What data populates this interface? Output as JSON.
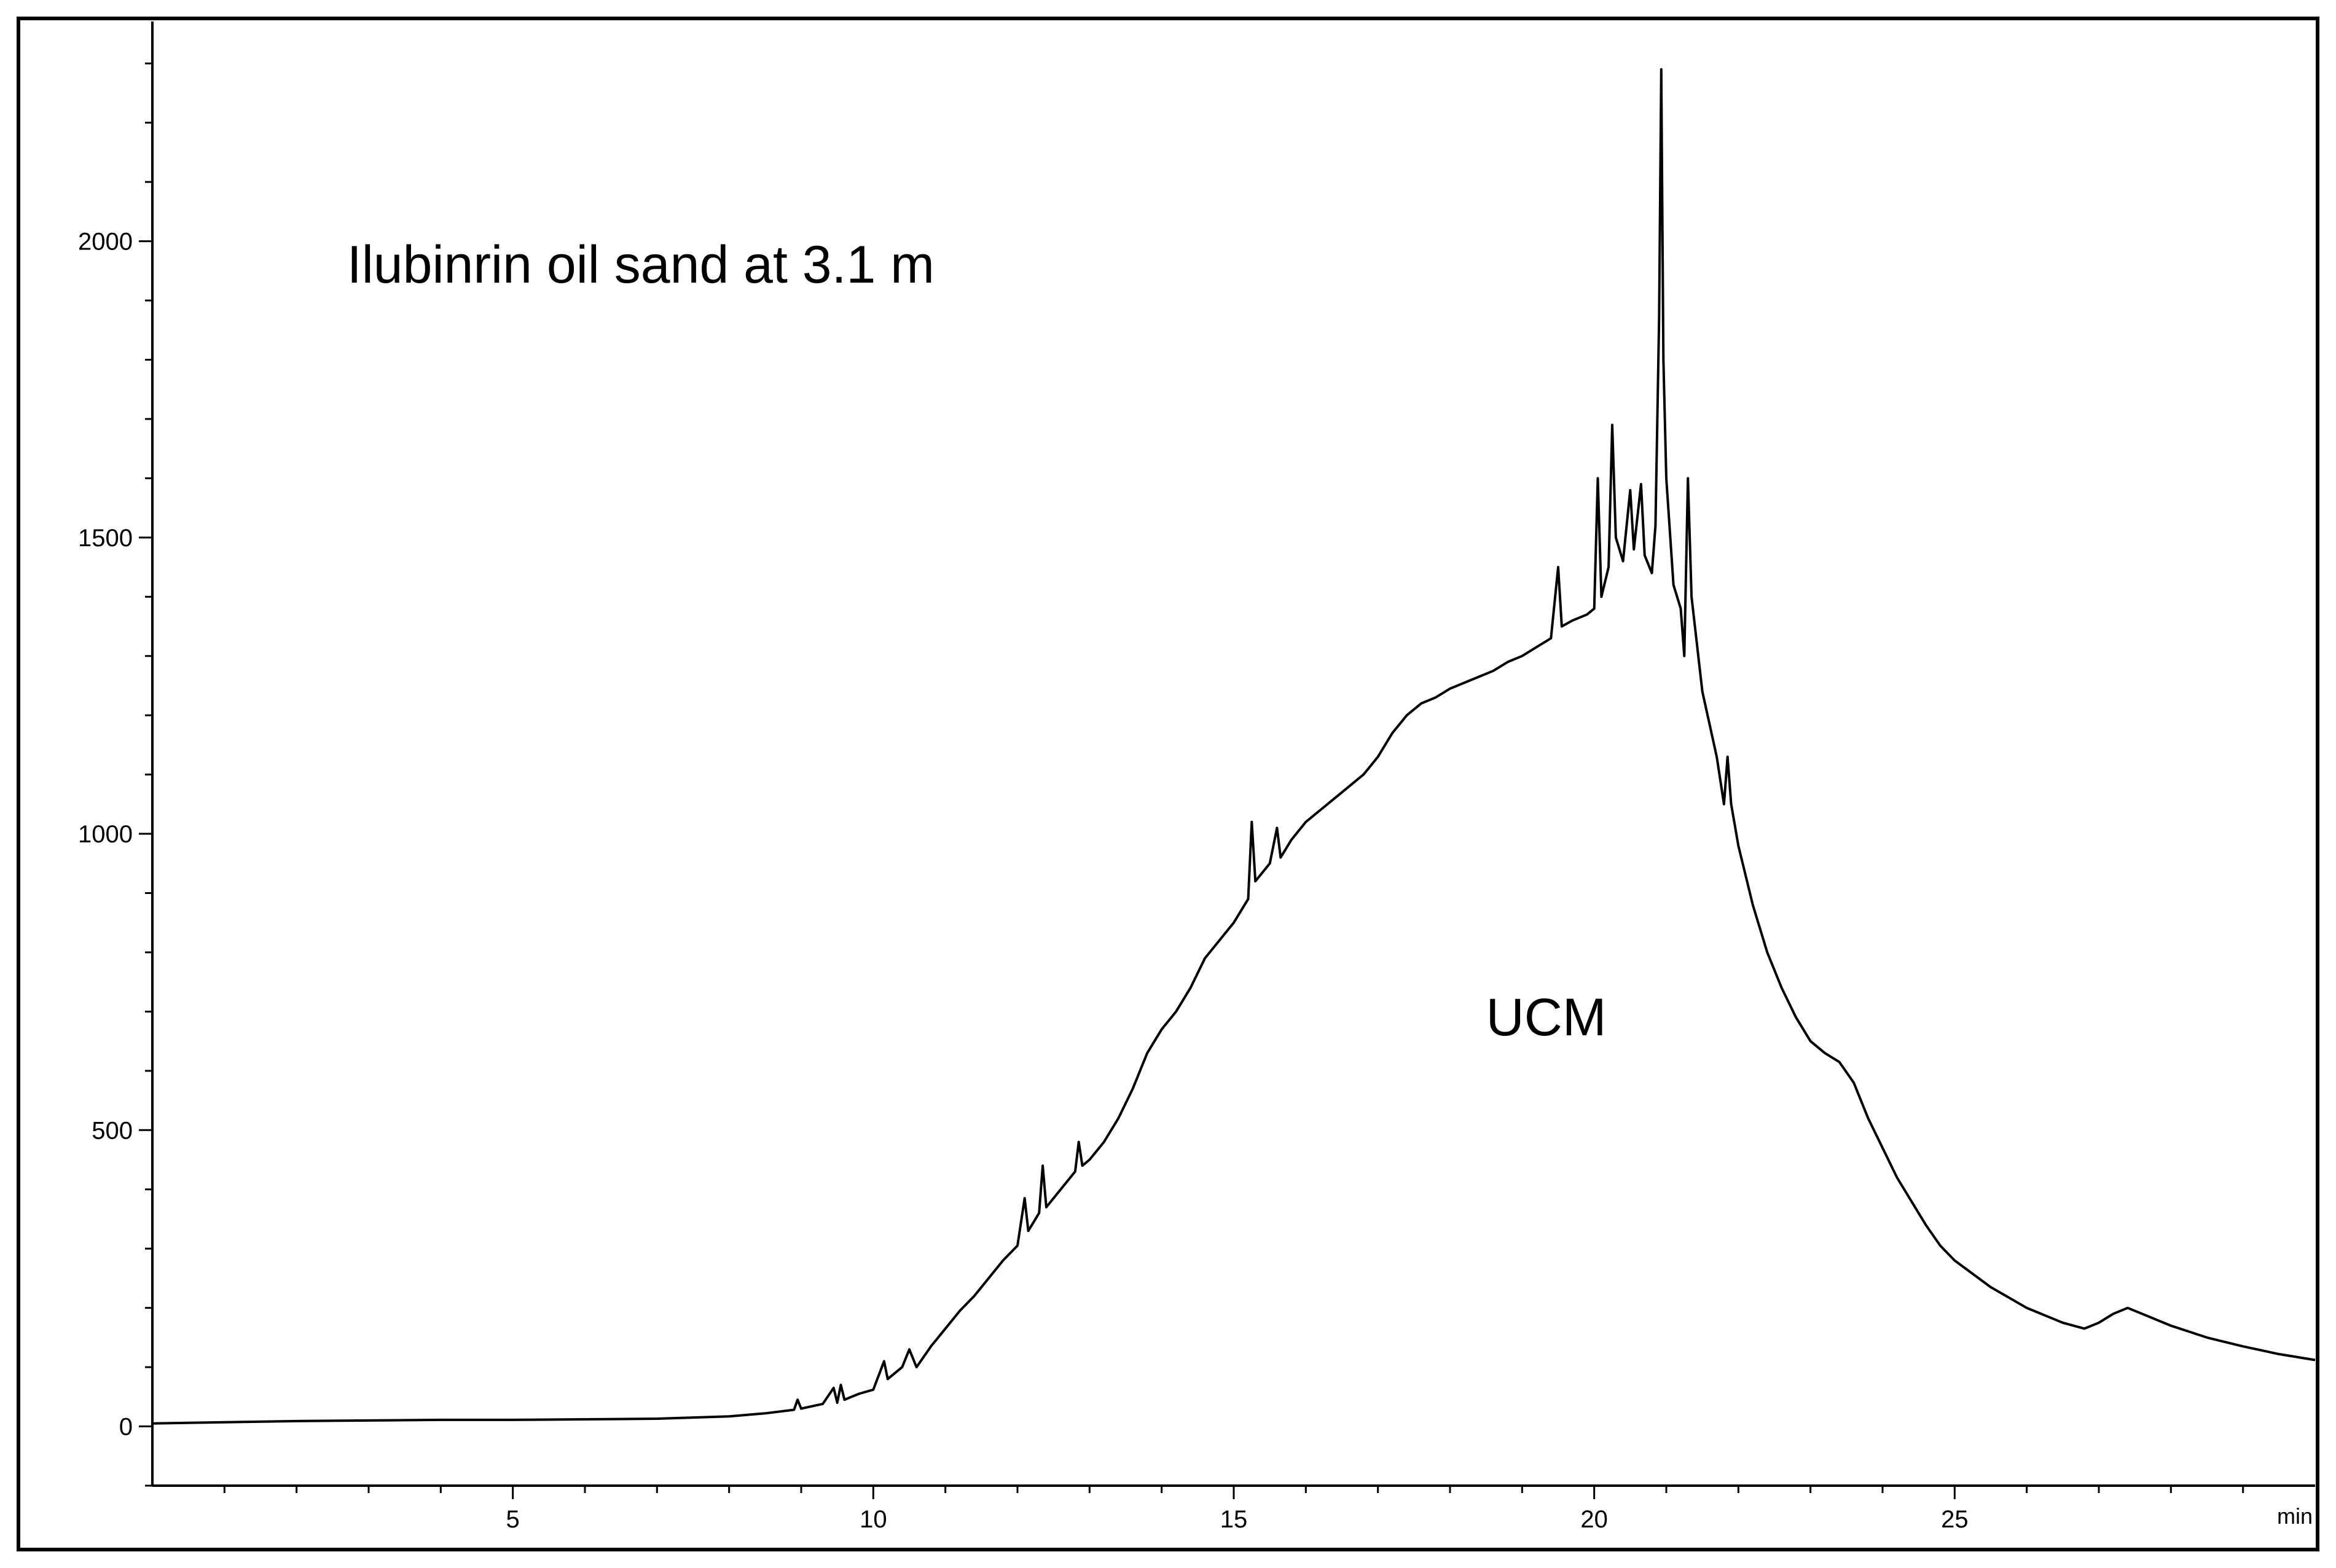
{
  "chart_data": {
    "type": "line",
    "title": "",
    "xlabel": "",
    "ylabel": "",
    "x_unit_label": "min",
    "xlim": [
      0,
      30
    ],
    "ylim": [
      -100,
      2350
    ],
    "x_ticks": [
      5,
      10,
      15,
      20,
      25
    ],
    "y_ticks": [
      0,
      500,
      1000,
      1500,
      2000
    ],
    "x_tick_labels": [
      "5",
      "10",
      "15",
      "20",
      "25"
    ],
    "y_tick_labels": [
      "0",
      "500",
      "1000",
      "1500",
      "2000"
    ],
    "grid": false,
    "legend": "none",
    "annotations": [
      {
        "text": "Ilubinrin oil sand at 3.1 m",
        "x": 2.7,
        "y": 1930
      },
      {
        "text": "UCM",
        "x": 18.5,
        "y": 660
      }
    ],
    "line_color": "#000000",
    "series": [
      {
        "values_xy": [
          [
            0.0,
            5
          ],
          [
            1.0,
            7
          ],
          [
            2.0,
            9
          ],
          [
            3.0,
            10
          ],
          [
            4.0,
            11
          ],
          [
            5.0,
            11
          ],
          [
            6.0,
            12
          ],
          [
            7.0,
            13
          ],
          [
            7.5,
            15
          ],
          [
            8.0,
            17
          ],
          [
            8.5,
            22
          ],
          [
            8.9,
            28
          ],
          [
            8.95,
            45
          ],
          [
            9.0,
            30
          ],
          [
            9.3,
            38
          ],
          [
            9.45,
            65
          ],
          [
            9.5,
            40
          ],
          [
            9.55,
            70
          ],
          [
            9.6,
            45
          ],
          [
            9.8,
            55
          ],
          [
            10.0,
            62
          ],
          [
            10.15,
            110
          ],
          [
            10.2,
            80
          ],
          [
            10.4,
            100
          ],
          [
            10.5,
            130
          ],
          [
            10.6,
            100
          ],
          [
            10.8,
            135
          ],
          [
            11.0,
            165
          ],
          [
            11.2,
            195
          ],
          [
            11.4,
            220
          ],
          [
            11.6,
            250
          ],
          [
            11.8,
            280
          ],
          [
            12.0,
            305
          ],
          [
            12.1,
            385
          ],
          [
            12.15,
            330
          ],
          [
            12.3,
            360
          ],
          [
            12.35,
            440
          ],
          [
            12.4,
            370
          ],
          [
            12.6,
            400
          ],
          [
            12.8,
            430
          ],
          [
            12.85,
            480
          ],
          [
            12.9,
            440
          ],
          [
            13.0,
            450
          ],
          [
            13.2,
            480
          ],
          [
            13.4,
            520
          ],
          [
            13.6,
            570
          ],
          [
            13.8,
            630
          ],
          [
            14.0,
            670
          ],
          [
            14.2,
            700
          ],
          [
            14.4,
            740
          ],
          [
            14.6,
            790
          ],
          [
            14.8,
            820
          ],
          [
            15.0,
            850
          ],
          [
            15.2,
            890
          ],
          [
            15.25,
            1020
          ],
          [
            15.3,
            920
          ],
          [
            15.5,
            950
          ],
          [
            15.6,
            1010
          ],
          [
            15.65,
            960
          ],
          [
            15.8,
            990
          ],
          [
            16.0,
            1020
          ],
          [
            16.2,
            1040
          ],
          [
            16.4,
            1060
          ],
          [
            16.6,
            1080
          ],
          [
            16.8,
            1100
          ],
          [
            17.0,
            1130
          ],
          [
            17.2,
            1170
          ],
          [
            17.4,
            1200
          ],
          [
            17.6,
            1220
          ],
          [
            17.8,
            1230
          ],
          [
            18.0,
            1245
          ],
          [
            18.2,
            1255
          ],
          [
            18.4,
            1265
          ],
          [
            18.6,
            1275
          ],
          [
            18.8,
            1290
          ],
          [
            19.0,
            1300
          ],
          [
            19.2,
            1315
          ],
          [
            19.4,
            1330
          ],
          [
            19.5,
            1450
          ],
          [
            19.55,
            1350
          ],
          [
            19.7,
            1360
          ],
          [
            19.9,
            1370
          ],
          [
            20.0,
            1380
          ],
          [
            20.05,
            1600
          ],
          [
            20.1,
            1400
          ],
          [
            20.2,
            1450
          ],
          [
            20.25,
            1690
          ],
          [
            20.3,
            1500
          ],
          [
            20.4,
            1460
          ],
          [
            20.5,
            1580
          ],
          [
            20.55,
            1480
          ],
          [
            20.65,
            1590
          ],
          [
            20.7,
            1470
          ],
          [
            20.8,
            1440
          ],
          [
            20.85,
            1520
          ],
          [
            20.9,
            1870
          ],
          [
            20.93,
            2290
          ],
          [
            20.96,
            1800
          ],
          [
            21.0,
            1600
          ],
          [
            21.1,
            1420
          ],
          [
            21.2,
            1380
          ],
          [
            21.25,
            1300
          ],
          [
            21.3,
            1600
          ],
          [
            21.35,
            1400
          ],
          [
            21.5,
            1240
          ],
          [
            21.7,
            1130
          ],
          [
            21.8,
            1050
          ],
          [
            21.85,
            1130
          ],
          [
            21.9,
            1050
          ],
          [
            22.0,
            980
          ],
          [
            22.2,
            880
          ],
          [
            22.4,
            800
          ],
          [
            22.6,
            740
          ],
          [
            22.8,
            690
          ],
          [
            23.0,
            650
          ],
          [
            23.2,
            630
          ],
          [
            23.4,
            615
          ],
          [
            23.6,
            580
          ],
          [
            23.8,
            520
          ],
          [
            24.0,
            470
          ],
          [
            24.2,
            420
          ],
          [
            24.4,
            380
          ],
          [
            24.6,
            340
          ],
          [
            24.8,
            305
          ],
          [
            25.0,
            280
          ],
          [
            25.5,
            235
          ],
          [
            26.0,
            200
          ],
          [
            26.5,
            175
          ],
          [
            26.8,
            165
          ],
          [
            27.0,
            175
          ],
          [
            27.2,
            190
          ],
          [
            27.4,
            200
          ],
          [
            27.6,
            190
          ],
          [
            28.0,
            170
          ],
          [
            28.5,
            150
          ],
          [
            29.0,
            135
          ],
          [
            29.5,
            122
          ],
          [
            30.0,
            112
          ]
        ]
      }
    ]
  }
}
